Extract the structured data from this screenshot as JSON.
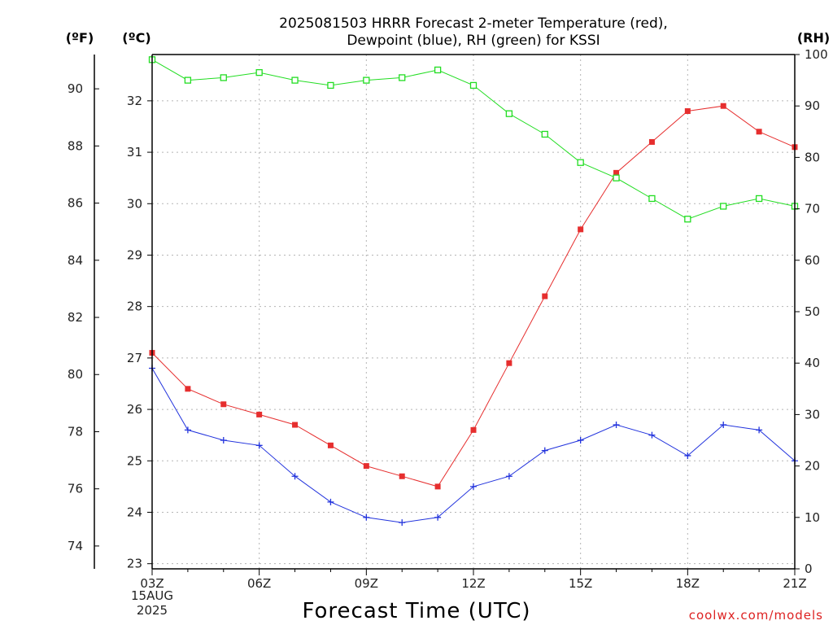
{
  "title_line1": "2025081503 HRRR Forecast 2-meter Temperature (red),",
  "title_line2": "Dewpoint (blue), RH (green) for KSSI",
  "units": {
    "f": "(ºF)",
    "c": "(ºC)",
    "rh": "(RH)"
  },
  "xlabel": "Forecast Time (UTC)",
  "credit": "coolwx.com/models",
  "date_label": [
    "15AUG",
    "2025"
  ],
  "chart_data": {
    "type": "line",
    "x": [
      "03Z",
      "04Z",
      "05Z",
      "06Z",
      "07Z",
      "08Z",
      "09Z",
      "10Z",
      "11Z",
      "12Z",
      "13Z",
      "14Z",
      "15Z",
      "16Z",
      "17Z",
      "18Z",
      "19Z",
      "20Z",
      "21Z"
    ],
    "x_ticks": [
      "03Z",
      "06Z",
      "09Z",
      "12Z",
      "15Z",
      "18Z",
      "21Z"
    ],
    "grid": true,
    "axes": {
      "celsius": {
        "ylim": [
          22.9,
          32.9
        ],
        "ticks": [
          23,
          24,
          25,
          26,
          27,
          28,
          29,
          30,
          31,
          32
        ]
      },
      "fahrenheit": {
        "ylim": [
          73.2,
          91.2
        ],
        "ticks": [
          74,
          76,
          78,
          80,
          82,
          84,
          86,
          88,
          90
        ]
      },
      "rh": {
        "ylim": [
          0,
          100
        ],
        "ticks": [
          0,
          10,
          20,
          30,
          40,
          50,
          60,
          70,
          80,
          90,
          100
        ]
      }
    },
    "series": [
      {
        "name": "Temperature",
        "axis": "celsius",
        "color": "#e62e2e",
        "marker": "filled-square",
        "values": [
          27.1,
          26.4,
          26.1,
          25.9,
          25.7,
          25.3,
          24.9,
          24.7,
          24.5,
          25.6,
          26.9,
          28.2,
          29.5,
          30.6,
          31.2,
          31.8,
          31.9,
          31.4,
          31.1
        ]
      },
      {
        "name": "Dewpoint",
        "axis": "celsius",
        "color": "#2233dd",
        "marker": "plus",
        "values": [
          26.8,
          25.6,
          25.4,
          25.3,
          24.7,
          24.2,
          23.9,
          23.8,
          23.9,
          24.5,
          24.7,
          25.2,
          25.4,
          25.7,
          25.5,
          25.1,
          25.7,
          25.6,
          25.0
        ]
      },
      {
        "name": "RH",
        "axis": "rh",
        "color": "#22dd22",
        "marker": "open-square",
        "values": [
          99,
          95,
          95.5,
          96.5,
          95,
          94,
          95,
          95.5,
          97,
          94,
          88.5,
          84.5,
          79,
          76,
          72,
          68,
          70.5,
          72,
          70.5
        ]
      }
    ]
  }
}
